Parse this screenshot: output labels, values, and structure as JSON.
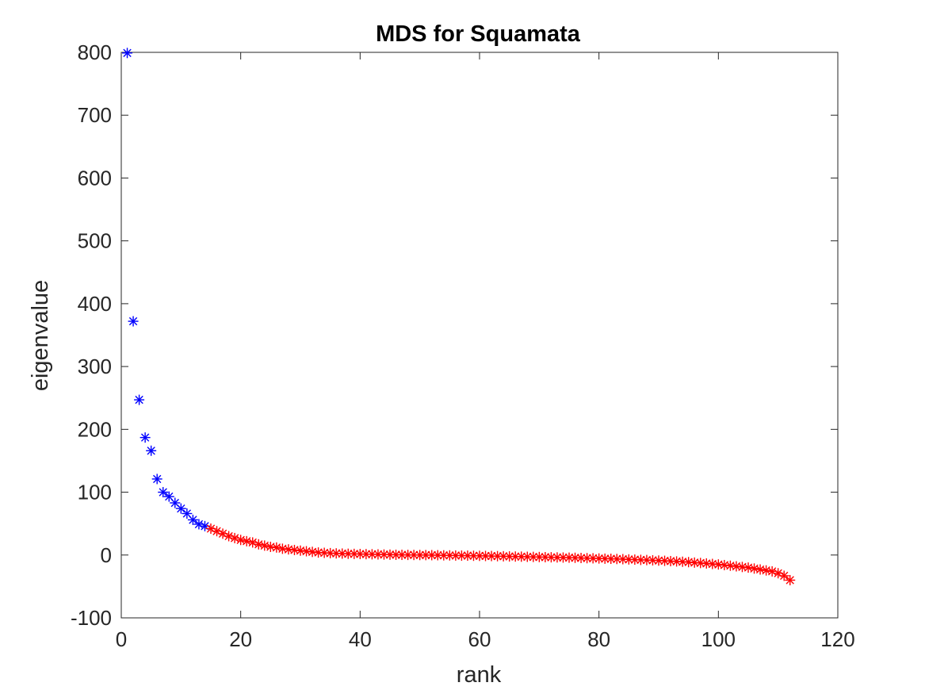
{
  "chart_data": {
    "type": "scatter",
    "title": "MDS for Squamata",
    "xlabel": "rank",
    "ylabel": "eigenvalue",
    "xlim": [
      0,
      120
    ],
    "ylim": [
      -100,
      800
    ],
    "xticks": [
      0,
      20,
      40,
      60,
      80,
      100,
      120
    ],
    "yticks": [
      -100,
      0,
      100,
      200,
      300,
      400,
      500,
      600,
      700,
      800
    ],
    "grid": false,
    "marker": "asterisk",
    "series": [
      {
        "color": "#0000ff",
        "x": [
          1,
          2,
          3,
          4,
          5,
          6,
          7,
          8,
          9,
          10,
          11,
          12,
          13,
          14
        ],
        "y": [
          799,
          372,
          247,
          187,
          166,
          121,
          100,
          93,
          83,
          74,
          66,
          56,
          49,
          46
        ]
      },
      {
        "color": "#ff0000",
        "x": [
          15,
          16,
          17,
          18,
          19,
          20,
          21,
          22,
          23,
          24,
          25,
          26,
          27,
          28,
          29,
          30,
          31,
          32,
          33,
          34,
          35,
          36,
          37,
          38,
          39,
          40,
          41,
          42,
          43,
          44,
          45,
          46,
          47,
          48,
          49,
          50,
          51,
          52,
          53,
          54,
          55,
          56,
          57,
          58,
          59,
          60,
          61,
          62,
          63,
          64,
          65,
          66,
          67,
          68,
          69,
          70,
          71,
          72,
          73,
          74,
          75,
          76,
          77,
          78,
          79,
          80,
          81,
          82,
          83,
          84,
          85,
          86,
          87,
          88,
          89,
          90,
          91,
          92,
          93,
          94,
          95,
          96,
          97,
          98,
          99,
          100,
          101,
          102,
          103,
          104,
          105,
          106,
          107,
          108,
          109,
          110,
          111,
          112
        ],
        "y": [
          42,
          38,
          34,
          30,
          27,
          24,
          22,
          20,
          17,
          15,
          13,
          12,
          10,
          9,
          8,
          7,
          6,
          5,
          4,
          3.5,
          3,
          2.6,
          2.3,
          2,
          1.8,
          1.6,
          1.4,
          1.2,
          1,
          0.8,
          0.6,
          0.4,
          0.3,
          0.2,
          0.1,
          0,
          -0.1,
          -0.2,
          -0.3,
          -0.5,
          -0.6,
          -0.8,
          -0.9,
          -1,
          -1.2,
          -1.3,
          -1.5,
          -1.6,
          -1.8,
          -2,
          -2.2,
          -2.4,
          -2.6,
          -2.8,
          -3,
          -3.2,
          -3.4,
          -3.6,
          -3.8,
          -4,
          -4.2,
          -4.4,
          -4.7,
          -5,
          -5.2,
          -5.5,
          -5.8,
          -6,
          -6.3,
          -6.6,
          -7,
          -7.3,
          -7.7,
          -8,
          -8.4,
          -8.8,
          -9.2,
          -9.7,
          -10.2,
          -10.7,
          -11.3,
          -12,
          -12.7,
          -13.4,
          -14.2,
          -15,
          -16,
          -17,
          -18,
          -19,
          -20,
          -21.5,
          -23,
          -24.5,
          -26,
          -29,
          -33,
          -40
        ]
      }
    ]
  }
}
